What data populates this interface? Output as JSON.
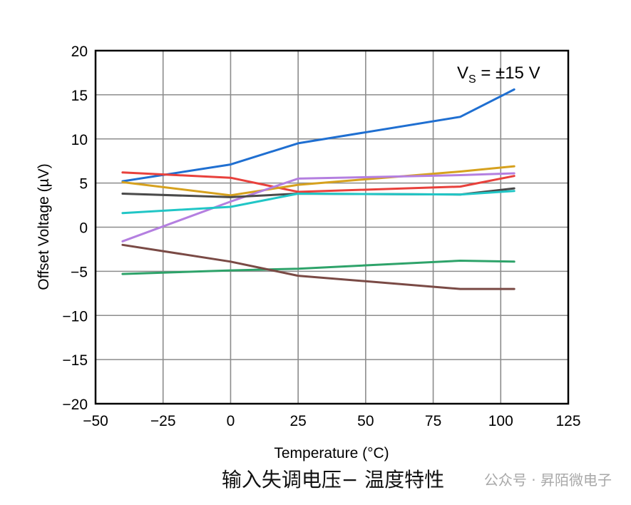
{
  "chart_data": {
    "type": "line",
    "xlabel": "Temperature (°C)",
    "ylabel": "Offset Voltage (µV)",
    "xlim": [
      -50,
      125
    ],
    "ylim": [
      -20,
      20
    ],
    "xticks": [
      "−50",
      "−25",
      "0",
      "25",
      "50",
      "75",
      "100",
      "125"
    ],
    "yticks": [
      "20",
      "15",
      "10",
      "5",
      "0",
      "−5",
      "−10",
      "−15",
      "−20"
    ],
    "xtick_values": [
      -50,
      -25,
      0,
      25,
      50,
      75,
      100,
      125
    ],
    "ytick_values": [
      20,
      15,
      10,
      5,
      0,
      -5,
      -10,
      -15,
      -20
    ],
    "grid": true,
    "annotation": {
      "v": "V",
      "sub": "S",
      "rest": " = ±15 V"
    },
    "series": [
      {
        "color": "#1f6fd1",
        "x": [
          -40,
          0,
          25,
          85,
          105
        ],
        "y": [
          5.2,
          7.1,
          9.5,
          12.5,
          15.6
        ]
      },
      {
        "color": "#e8413c",
        "x": [
          -40,
          0,
          25,
          85,
          105
        ],
        "y": [
          6.2,
          5.6,
          4.0,
          4.6,
          5.8
        ]
      },
      {
        "color": "#d6a11e",
        "x": [
          -40,
          0,
          25,
          85,
          105
        ],
        "y": [
          5.1,
          3.6,
          4.8,
          6.3,
          6.9
        ]
      },
      {
        "color": "#b47fe0",
        "x": [
          -40,
          0,
          25,
          85,
          105
        ],
        "y": [
          -1.6,
          2.9,
          5.5,
          5.9,
          6.1
        ]
      },
      {
        "color": "#4a4a4a",
        "x": [
          -40,
          0,
          25,
          85,
          105
        ],
        "y": [
          3.8,
          3.4,
          3.8,
          3.7,
          4.4
        ]
      },
      {
        "color": "#21c6c6",
        "x": [
          -40,
          0,
          25,
          85,
          105
        ],
        "y": [
          1.6,
          2.3,
          3.8,
          3.7,
          4.1
        ]
      },
      {
        "color": "#2ea36a",
        "x": [
          -40,
          0,
          25,
          85,
          105
        ],
        "y": [
          -5.3,
          -4.9,
          -4.7,
          -3.8,
          -3.9
        ]
      },
      {
        "color": "#7a4a45",
        "x": [
          -40,
          0,
          25,
          85,
          105
        ],
        "y": [
          -2.0,
          -3.9,
          -5.5,
          -7.0,
          -7.0
        ]
      }
    ]
  },
  "caption": "输入失调电压− 温度特性",
  "watermark": "公众号 · 昇陌微电子"
}
